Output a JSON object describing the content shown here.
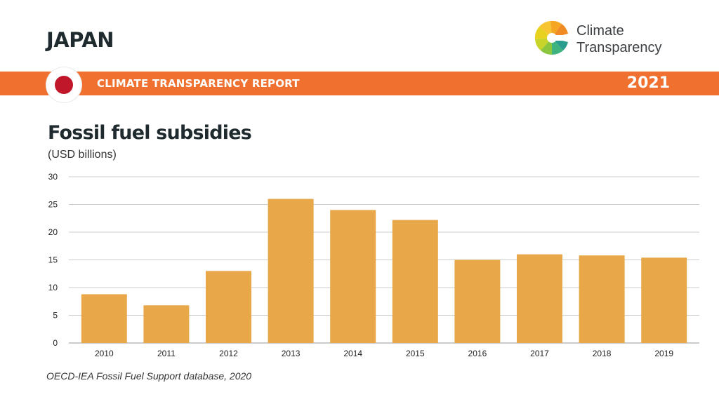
{
  "header": {
    "country": "JAPAN",
    "logo_line1": "Climate",
    "logo_line2": "Transparency",
    "report_title": "CLIMATE TRANSPARENCY REPORT",
    "year": "2021"
  },
  "colors": {
    "banner": "#f07030",
    "bar": "#e8a84a",
    "flag_red": "#c0182a"
  },
  "source": "OECD-IEA Fossil Fuel Support database, 2020",
  "chart_data": {
    "type": "bar",
    "title": "Fossil fuel subsidies",
    "subtitle": "(USD billions)",
    "categories": [
      "2010",
      "2011",
      "2012",
      "2013",
      "2014",
      "2015",
      "2016",
      "2017",
      "2018",
      "2019"
    ],
    "values": [
      8.8,
      6.8,
      13.0,
      26.0,
      24.0,
      22.2,
      15.0,
      16.0,
      15.8,
      15.4
    ],
    "ylim": [
      0,
      30
    ],
    "yticks": [
      0,
      5,
      10,
      15,
      20,
      25,
      30
    ],
    "grid": true,
    "xlabel": "",
    "ylabel": ""
  }
}
